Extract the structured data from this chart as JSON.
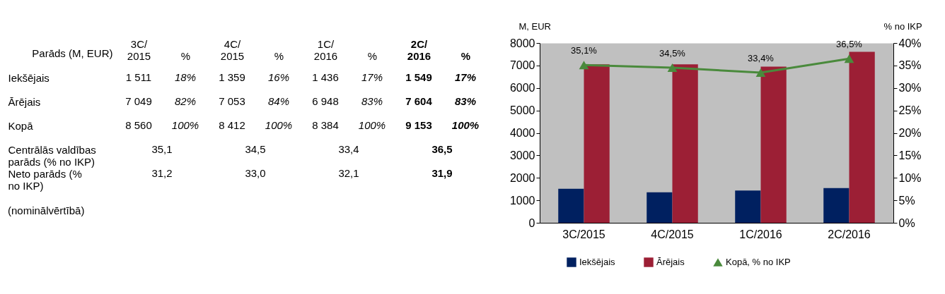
{
  "chart_data": [
    {
      "type": "other",
      "ylabel": "Parāds (M, EUR)",
      "categories": [
        "3C/\n2015",
        "%",
        "4C/\n2015",
        "%",
        "1C/\n2016",
        "%",
        "2C/\n2016",
        "%"
      ],
      "y_categories": [
        "Iekšējais",
        "Ārējais",
        "Kopā",
        "Centrālās valdības\nparāds (% no IKP)",
        "Neto parāds (%\nno IKP)"
      ],
      "cell_labels": [
        [
          "1 511",
          "18%",
          "1 359",
          "16%",
          "1 436",
          "17%",
          "1 549",
          "17%"
        ],
        [
          "7 049",
          "82%",
          "7 053",
          "84%",
          "6 948",
          "83%",
          "7 604",
          "83%"
        ],
        [
          "8 560",
          "100%",
          "8 412",
          "100%",
          "8 384",
          "100%",
          "9 153",
          "100%"
        ],
        [
          "35,1",
          null,
          "34,5",
          null,
          "33,4",
          null,
          "36,5",
          null
        ],
        [
          "31,2",
          null,
          "33,0",
          null,
          "32,1",
          null,
          "31,9",
          null
        ]
      ],
      "annotations": [
        "(nominālvērtībā)"
      ]
    },
    {
      "type": "bar",
      "categories": [
        "3C/2015",
        "4C/2015",
        "1C/2016",
        "2C/2016"
      ],
      "ylabel": "M, EUR",
      "y2label": "% no IKP",
      "series": [
        {
          "name": "Iekšējais",
          "color": "#002060",
          "values": [
            1511,
            1359,
            1436,
            1549
          ]
        },
        {
          "name": "Ārējais",
          "color": "#9c1f35",
          "values": [
            7049,
            7053,
            6948,
            7604
          ]
        },
        {
          "name": "Kopā, % no IKP",
          "type": "line",
          "axis": "y2",
          "color": "#4a8a3c",
          "values": [
            35.1,
            34.5,
            33.4,
            36.5
          ],
          "value_labels": [
            "35,1%",
            "34,5%",
            "33,4%",
            "36,5%"
          ]
        }
      ],
      "ylim": [
        0,
        8000
      ],
      "yticks": [
        0,
        1000,
        2000,
        3000,
        4000,
        5000,
        6000,
        7000,
        8000
      ],
      "y2lim": [
        0,
        40
      ],
      "y2ticks": [
        {
          "value": 0,
          "label": "0%"
        },
        {
          "value": 5,
          "label": "5%"
        },
        {
          "value": 10,
          "label": "10%"
        },
        {
          "value": 15,
          "label": "15%"
        },
        {
          "value": 20,
          "label": "20%"
        },
        {
          "value": 25,
          "label": "25%"
        },
        {
          "value": 30,
          "label": "30%"
        },
        {
          "value": 35,
          "label": "35%"
        },
        {
          "value": 40,
          "label": "40%"
        }
      ],
      "legend": "bottom",
      "marker": "triangle",
      "line_style": "solid"
    }
  ]
}
